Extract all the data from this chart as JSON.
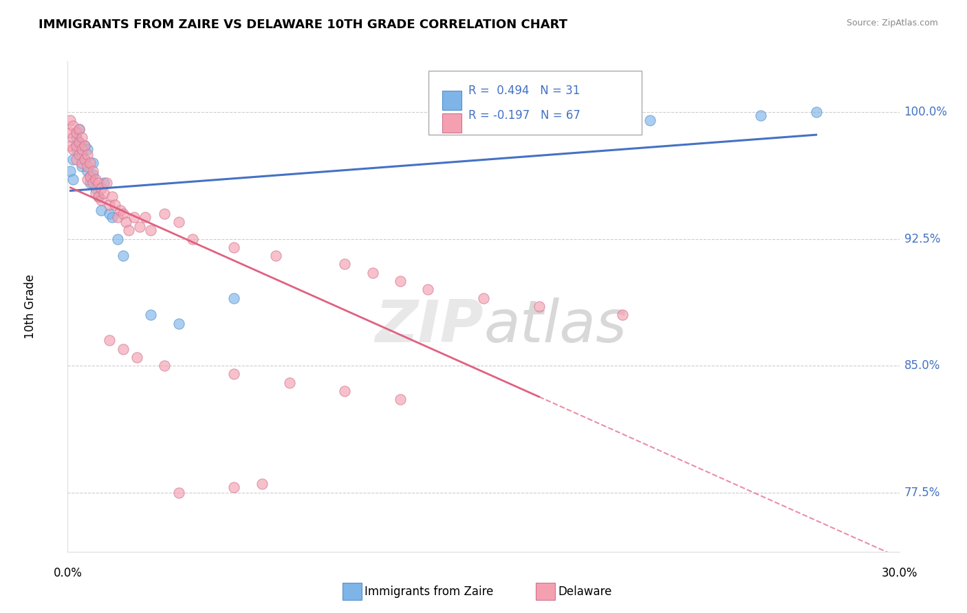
{
  "title": "IMMIGRANTS FROM ZAIRE VS DELAWARE 10TH GRADE CORRELATION CHART",
  "source": "Source: ZipAtlas.com",
  "ylabel": "10th Grade",
  "yticks": [
    77.5,
    85.0,
    92.5,
    100.0
  ],
  "x_min": 0.0,
  "x_max": 0.3,
  "y_min": 74.0,
  "y_max": 103.0,
  "legend_blue_r": "R =  0.494",
  "legend_blue_n": "N = 31",
  "legend_pink_r": "R = -0.197",
  "legend_pink_n": "N = 67",
  "blue_scatter_x": [
    0.001,
    0.002,
    0.002,
    0.003,
    0.003,
    0.004,
    0.004,
    0.005,
    0.005,
    0.006,
    0.006,
    0.007,
    0.007,
    0.008,
    0.008,
    0.009,
    0.009,
    0.01,
    0.011,
    0.012,
    0.013,
    0.015,
    0.016,
    0.018,
    0.02,
    0.03,
    0.04,
    0.06,
    0.21,
    0.25,
    0.27
  ],
  "blue_scatter_y": [
    96.5,
    97.2,
    96.0,
    98.5,
    97.8,
    99.0,
    98.2,
    97.5,
    96.8,
    98.0,
    97.2,
    96.5,
    97.8,
    96.2,
    95.8,
    97.0,
    96.3,
    95.5,
    95.0,
    94.2,
    95.8,
    94.0,
    93.8,
    92.5,
    91.5,
    88.0,
    87.5,
    89.0,
    99.5,
    99.8,
    100.0
  ],
  "pink_scatter_x": [
    0.001,
    0.001,
    0.001,
    0.002,
    0.002,
    0.002,
    0.003,
    0.003,
    0.003,
    0.004,
    0.004,
    0.004,
    0.005,
    0.005,
    0.005,
    0.006,
    0.006,
    0.007,
    0.007,
    0.007,
    0.008,
    0.008,
    0.009,
    0.009,
    0.01,
    0.01,
    0.011,
    0.011,
    0.012,
    0.012,
    0.013,
    0.014,
    0.015,
    0.016,
    0.017,
    0.018,
    0.019,
    0.02,
    0.021,
    0.022,
    0.024,
    0.026,
    0.028,
    0.03,
    0.035,
    0.04,
    0.045,
    0.06,
    0.075,
    0.1,
    0.11,
    0.12,
    0.13,
    0.15,
    0.17,
    0.2,
    0.015,
    0.02,
    0.025,
    0.035,
    0.06,
    0.08,
    0.1,
    0.12,
    0.04,
    0.06,
    0.07
  ],
  "pink_scatter_y": [
    99.5,
    98.8,
    98.0,
    99.2,
    98.5,
    97.8,
    98.8,
    98.0,
    97.2,
    99.0,
    98.2,
    97.5,
    98.5,
    97.8,
    97.0,
    98.0,
    97.2,
    97.5,
    96.8,
    96.0,
    97.0,
    96.2,
    96.5,
    95.8,
    96.0,
    95.2,
    95.8,
    95.0,
    95.5,
    94.8,
    95.2,
    95.8,
    94.5,
    95.0,
    94.5,
    93.8,
    94.2,
    94.0,
    93.5,
    93.0,
    93.8,
    93.2,
    93.8,
    93.0,
    94.0,
    93.5,
    92.5,
    92.0,
    91.5,
    91.0,
    90.5,
    90.0,
    89.5,
    89.0,
    88.5,
    88.0,
    86.5,
    86.0,
    85.5,
    85.0,
    84.5,
    84.0,
    83.5,
    83.0,
    77.5,
    77.8,
    78.0
  ],
  "blue_color": "#7EB4E8",
  "pink_color": "#F4A0B0",
  "blue_line_color": "#4472C4",
  "pink_line_color": "#E06080",
  "blue_dot_edge": "#5090CC",
  "pink_dot_edge": "#D07090",
  "background_color": "#FFFFFF",
  "grid_color": "#CCCCCC",
  "tick_color": "#4472C4"
}
